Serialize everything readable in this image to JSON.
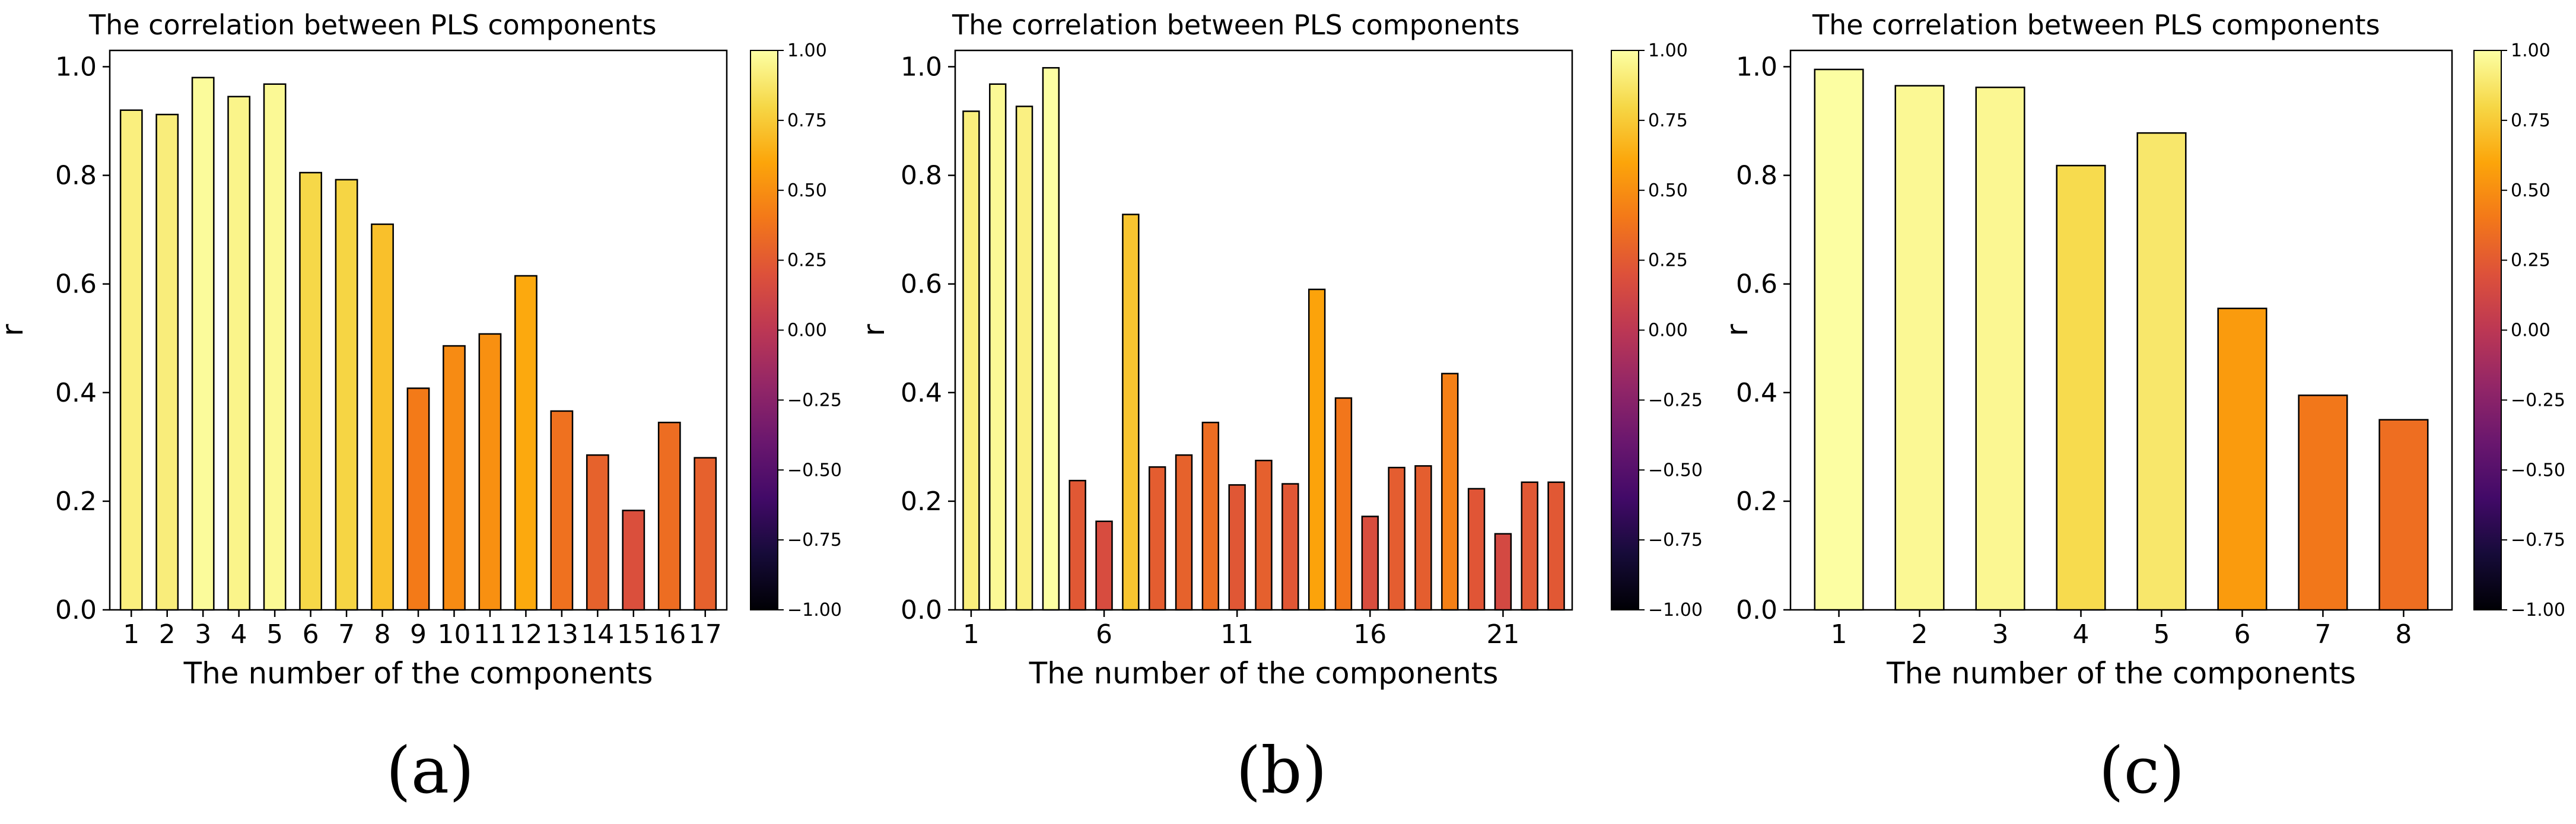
{
  "chart_data": [
    {
      "type": "bar",
      "title": "The correlation between PLS components",
      "xlabel": "The number of the components",
      "ylabel": "r",
      "ylim": [
        0,
        1.03
      ],
      "yticks": [
        "0.0",
        "0.2",
        "0.4",
        "0.6",
        "0.8",
        "1.0"
      ],
      "xticks": [
        "1",
        "2",
        "3",
        "4",
        "5",
        "6",
        "7",
        "8",
        "9",
        "10",
        "11",
        "12",
        "13",
        "14",
        "15",
        "16",
        "17"
      ],
      "categories": [
        1,
        2,
        3,
        4,
        5,
        6,
        7,
        8,
        9,
        10,
        11,
        12,
        13,
        14,
        15,
        16,
        17
      ],
      "values": [
        0.92,
        0.912,
        0.98,
        0.945,
        0.968,
        0.805,
        0.792,
        0.71,
        0.408,
        0.486,
        0.508,
        0.615,
        0.366,
        0.285,
        0.183,
        0.345,
        0.28
      ],
      "colorbar": {
        "cmap": "inferno",
        "range": [
          -1.0,
          1.0
        ],
        "ticks": [
          "1.00",
          "0.75",
          "0.50",
          "0.25",
          "0.00",
          "−0.25",
          "−0.50",
          "−0.75",
          "−1.00"
        ]
      },
      "panel_label": "(a)"
    },
    {
      "type": "bar",
      "title": "The correlation between PLS components",
      "xlabel": "The number of the components",
      "ylabel": "r",
      "ylim": [
        0,
        1.03
      ],
      "yticks": [
        "0.0",
        "0.2",
        "0.4",
        "0.6",
        "0.8",
        "1.0"
      ],
      "xticks": [
        "1",
        "6",
        "11",
        "16",
        "21"
      ],
      "categories": [
        1,
        2,
        3,
        4,
        5,
        6,
        7,
        8,
        9,
        10,
        11,
        12,
        13,
        14,
        15,
        16,
        17,
        18,
        19,
        20,
        21,
        22,
        23
      ],
      "values": [
        0.918,
        0.968,
        0.927,
        0.998,
        0.238,
        0.163,
        0.728,
        0.263,
        0.285,
        0.345,
        0.23,
        0.275,
        0.232,
        0.59,
        0.39,
        0.172,
        0.262,
        0.265,
        0.435,
        0.223,
        0.14,
        0.235,
        0.235
      ],
      "colorbar": {
        "cmap": "inferno",
        "range": [
          -1.0,
          1.0
        ],
        "ticks": [
          "1.00",
          "0.75",
          "0.50",
          "0.25",
          "0.00",
          "−0.25",
          "−0.50",
          "−0.75",
          "−1.00"
        ]
      },
      "panel_label": "(b)"
    },
    {
      "type": "bar",
      "title": "The correlation between PLS components",
      "xlabel": "The number of the components",
      "ylabel": "r",
      "ylim": [
        0,
        1.03
      ],
      "yticks": [
        "0.0",
        "0.2",
        "0.4",
        "0.6",
        "0.8",
        "1.0"
      ],
      "xticks": [
        "1",
        "2",
        "3",
        "4",
        "5",
        "6",
        "7",
        "8"
      ],
      "categories": [
        1,
        2,
        3,
        4,
        5,
        6,
        7,
        8
      ],
      "values": [
        0.995,
        0.965,
        0.962,
        0.818,
        0.878,
        0.555,
        0.395,
        0.35
      ],
      "colorbar": {
        "cmap": "inferno",
        "range": [
          -1.0,
          1.0
        ],
        "ticks": [
          "1.00",
          "0.75",
          "0.50",
          "0.25",
          "0.00",
          "−0.25",
          "−0.50",
          "−0.75",
          "−1.00"
        ]
      },
      "panel_label": "(c)"
    }
  ]
}
